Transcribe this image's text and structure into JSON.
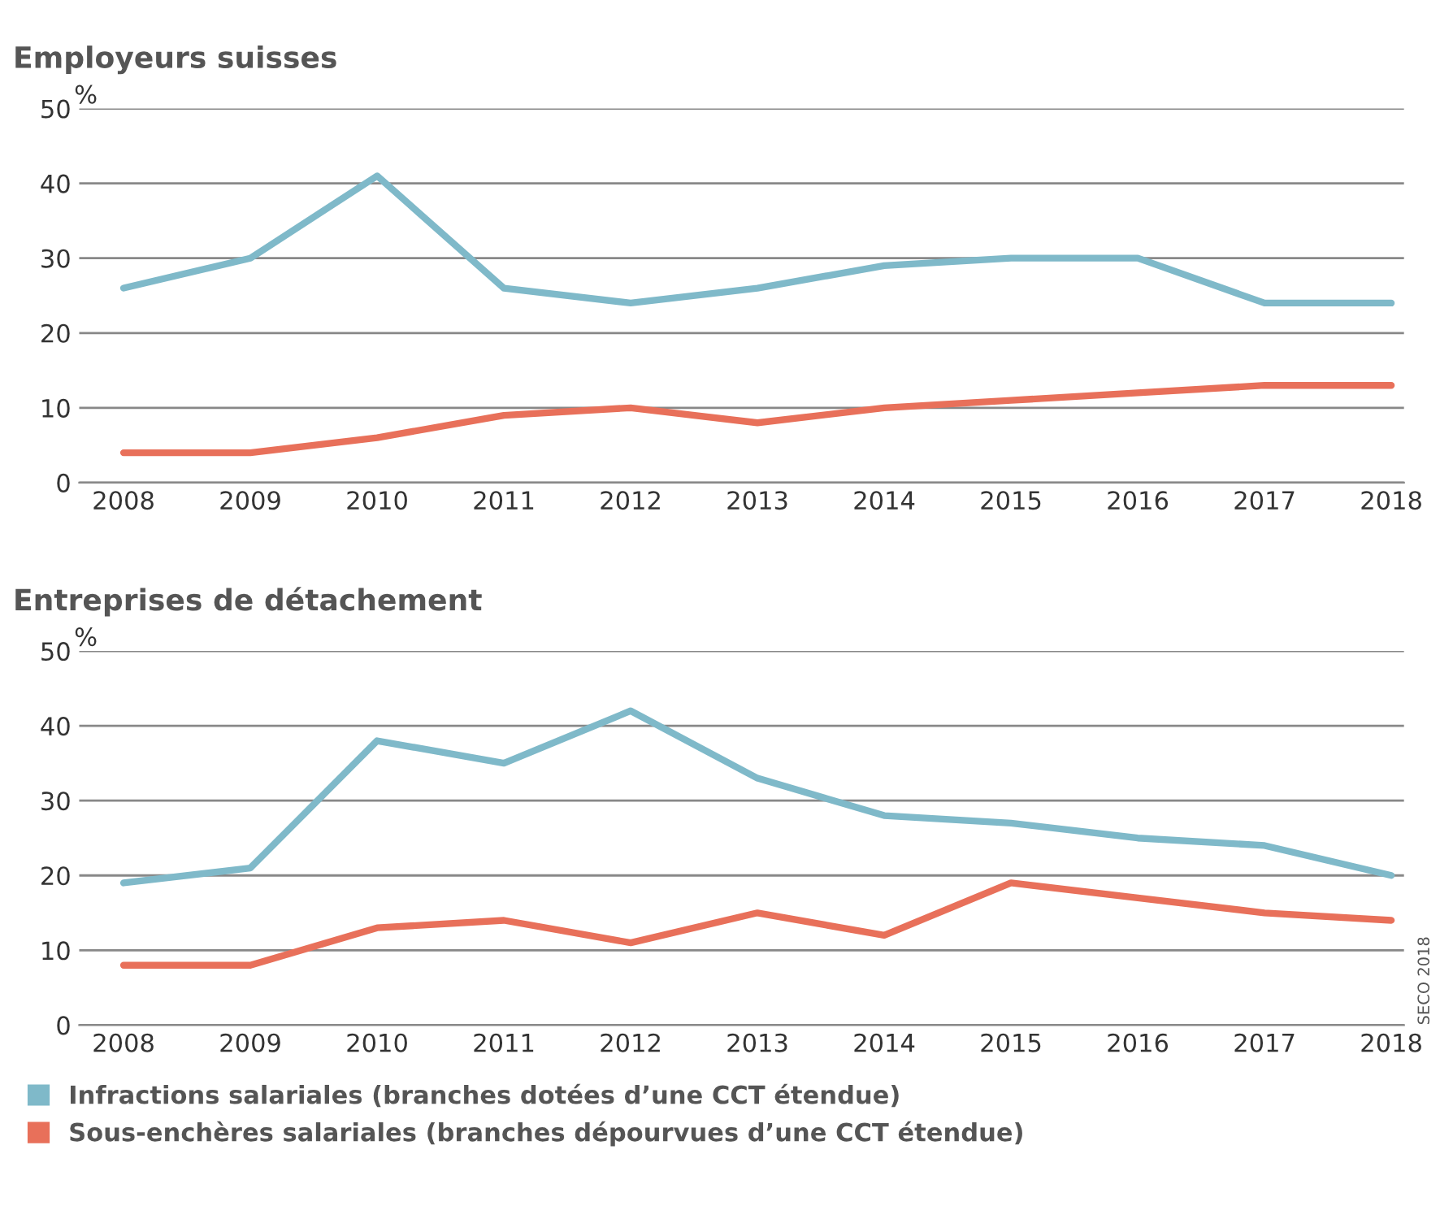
{
  "chart_data": [
    {
      "type": "line",
      "title": "Employeurs suisses",
      "ylabel": "%",
      "categories": [
        "2008",
        "2009",
        "2010",
        "2011",
        "2012",
        "2013",
        "2014",
        "2015",
        "2016",
        "2017",
        "2018"
      ],
      "series": [
        {
          "color": "#7fb9c9",
          "values": [
            26,
            30,
            41,
            26,
            24,
            26,
            29,
            30,
            30,
            24,
            24
          ]
        },
        {
          "color": "#e8705a",
          "values": [
            4,
            4,
            6,
            9,
            10,
            8,
            10,
            11,
            12,
            13,
            13
          ]
        }
      ],
      "ylim": [
        0,
        50
      ],
      "yticks": [
        0,
        10,
        20,
        30,
        40,
        50
      ],
      "grid": "y",
      "legend": false
    },
    {
      "type": "line",
      "title": "Entreprises de détachement",
      "ylabel": "%",
      "categories": [
        "2008",
        "2009",
        "2010",
        "2011",
        "2012",
        "2013",
        "2014",
        "2015",
        "2016",
        "2017",
        "2018"
      ],
      "series": [
        {
          "name": "Infractions salariales (branches dotées d’une CCT étendue)",
          "color": "#7fb9c9",
          "values": [
            19,
            21,
            38,
            35,
            42,
            33,
            28,
            27,
            25,
            24,
            20
          ]
        },
        {
          "name": "Sous-enchères salariales (branches dépourvues d’une CCT étendue)",
          "color": "#e8705a",
          "values": [
            8,
            8,
            13,
            14,
            11,
            15,
            12,
            19,
            17,
            15,
            14
          ]
        }
      ],
      "ylim": [
        0,
        50
      ],
      "yticks": [
        0,
        10,
        20,
        30,
        40,
        50
      ],
      "grid": "y",
      "legend": "bottom",
      "annotations": [
        "SECO 2018"
      ]
    }
  ]
}
